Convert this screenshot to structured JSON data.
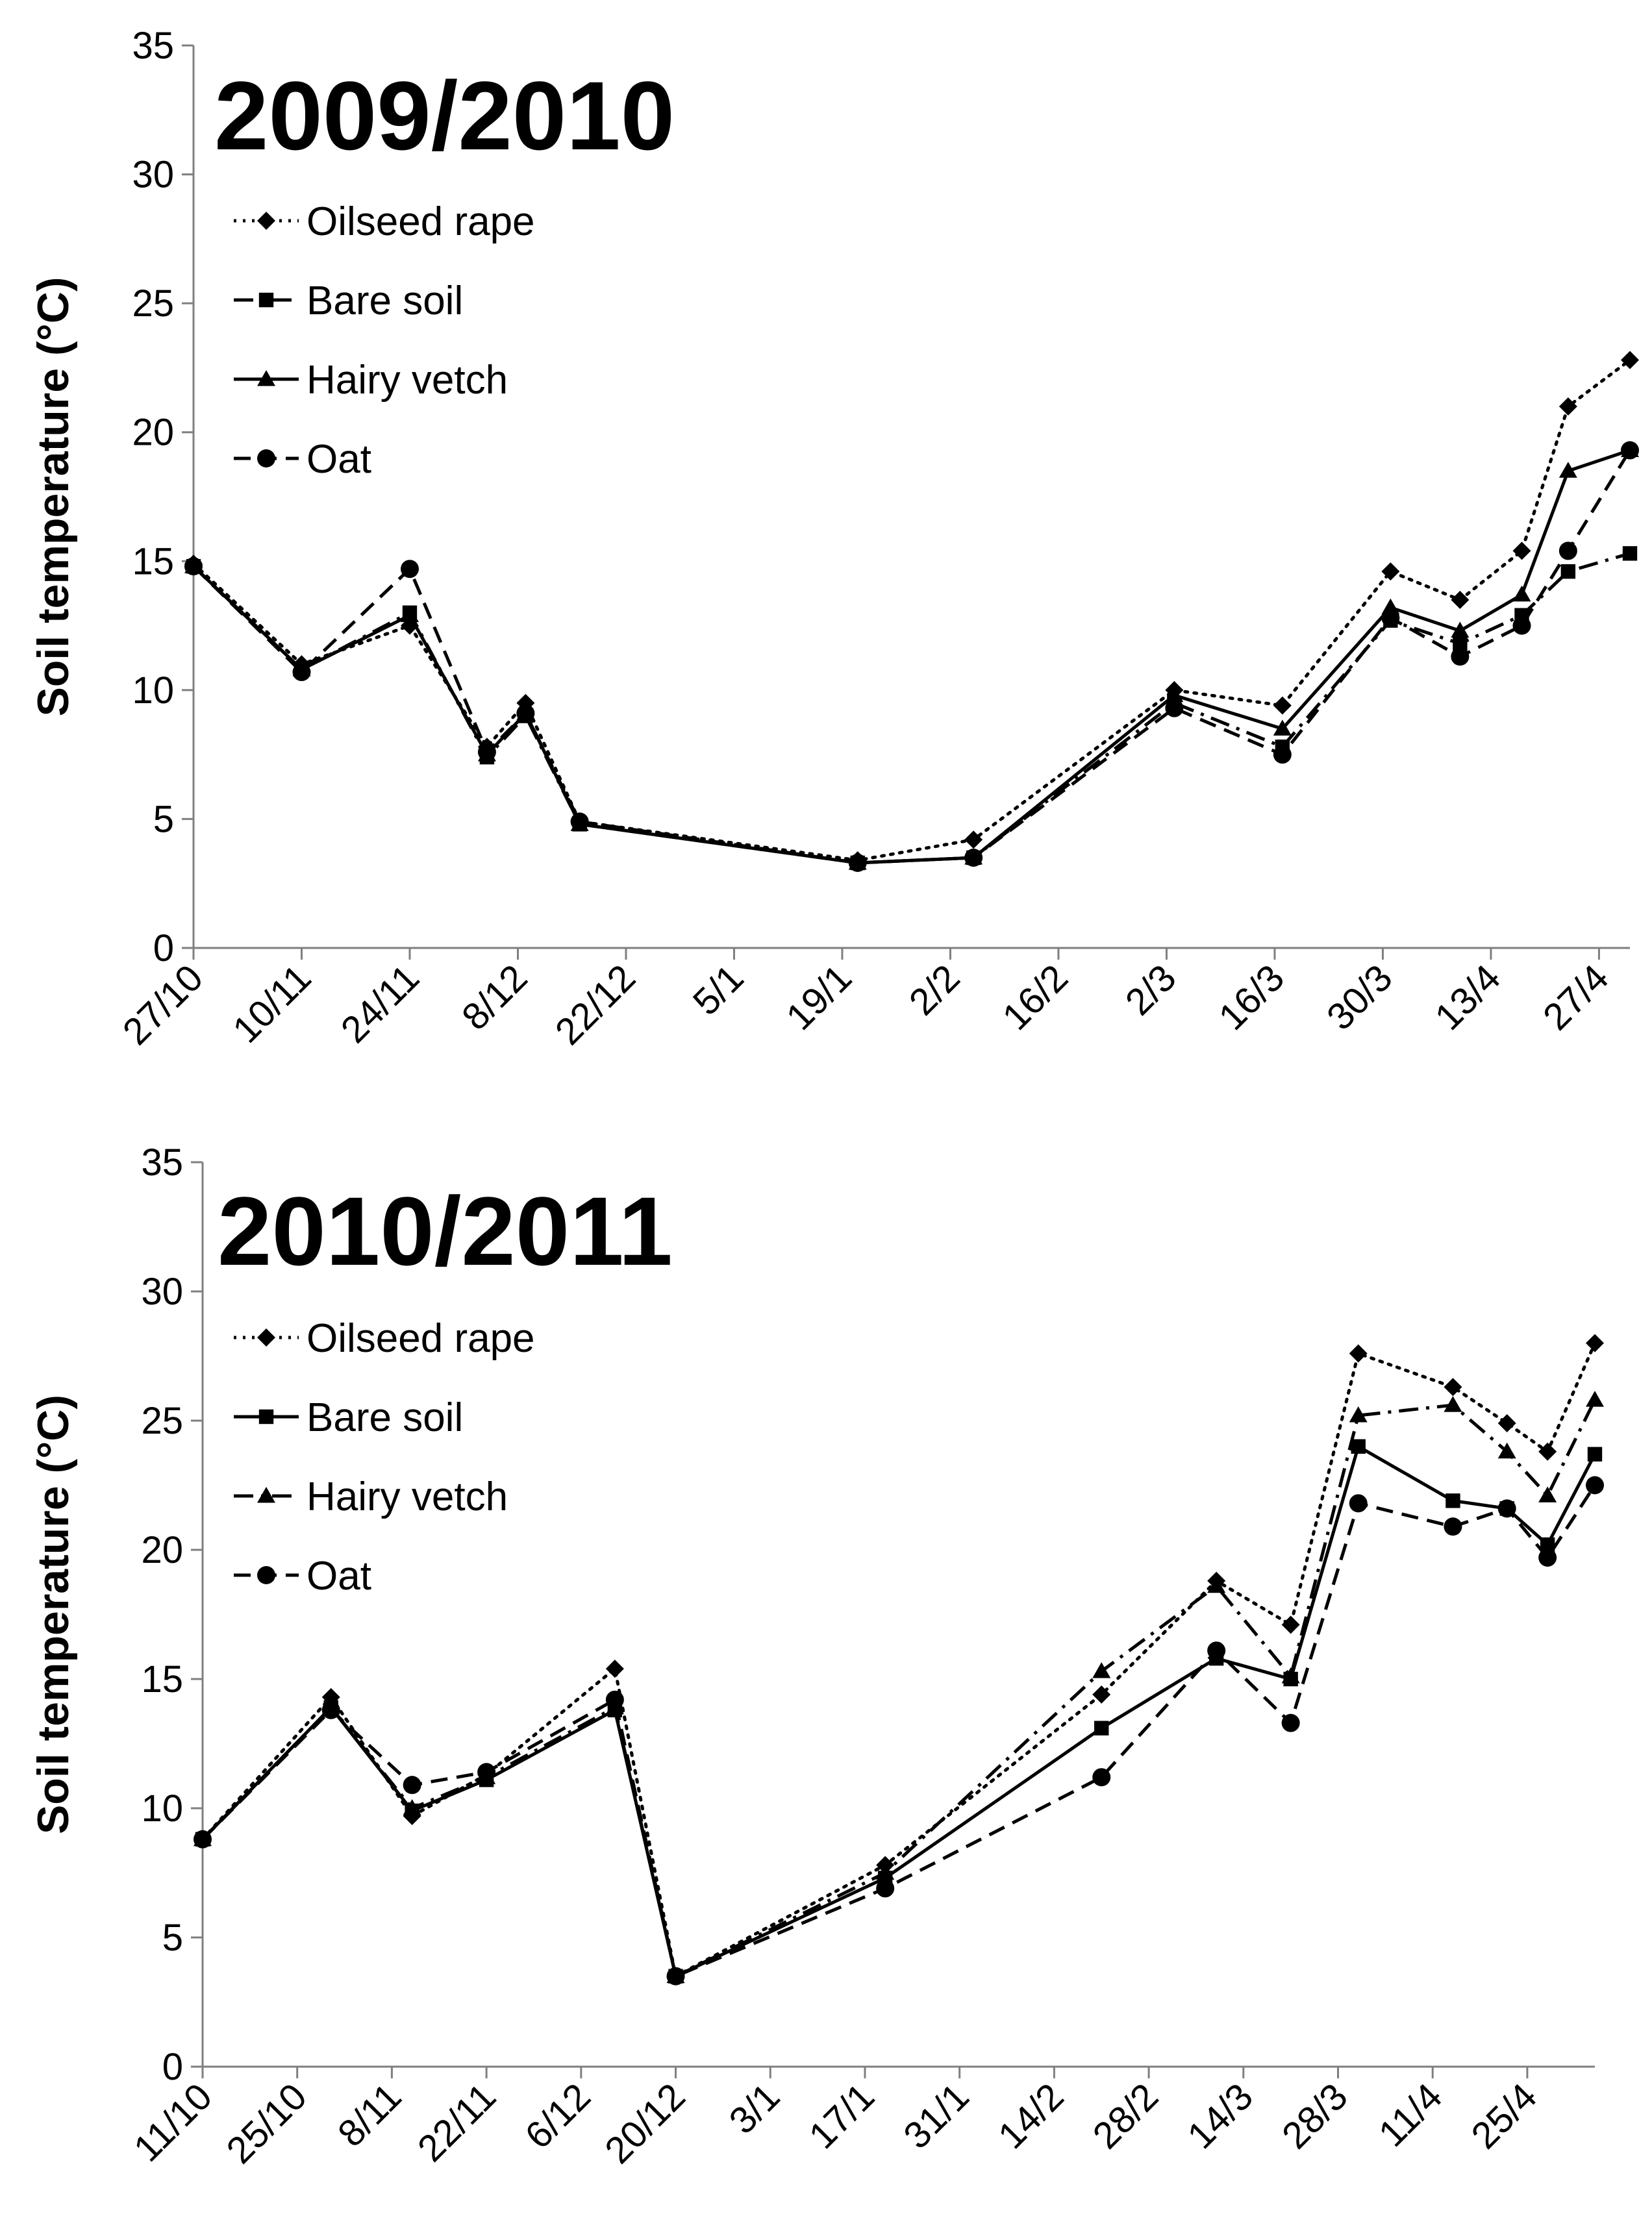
{
  "chart_data": [
    {
      "type": "line",
      "title": "2009/2010",
      "ylabel": "Soil temperature (°C)",
      "xlabel": "",
      "ylim": [
        0,
        35
      ],
      "yticks": [
        0,
        5,
        10,
        15,
        20,
        25,
        30,
        35
      ],
      "x_tick_labels": [
        "27/10",
        "10/11",
        "24/11",
        "8/12",
        "22/12",
        "5/1",
        "19/1",
        "2/2",
        "16/2",
        "2/3",
        "16/3",
        "30/3",
        "13/4",
        "27/4"
      ],
      "x_day_range": [
        0,
        186
      ],
      "x_tick_days": [
        0,
        14,
        28,
        42,
        56,
        70,
        84,
        98,
        112,
        126,
        140,
        154,
        168,
        182
      ],
      "x_days": [
        0,
        14,
        28,
        38,
        43,
        50,
        86,
        101,
        127,
        141,
        155,
        164,
        172,
        178,
        186
      ],
      "series": [
        {
          "name": "Oilseed rape",
          "style": "dotted",
          "marker": "diamond",
          "values": [
            14.9,
            11.0,
            12.5,
            7.8,
            9.5,
            4.9,
            3.4,
            4.2,
            10.0,
            9.4,
            14.6,
            13.5,
            15.4,
            21.0,
            22.8
          ]
        },
        {
          "name": "Bare soil",
          "style": "dashdot",
          "marker": "square",
          "values": [
            14.8,
            10.8,
            13.0,
            7.4,
            9.0,
            4.8,
            3.3,
            3.5,
            9.5,
            7.8,
            12.7,
            11.8,
            12.9,
            14.6,
            15.3
          ]
        },
        {
          "name": "Hairy vetch",
          "style": "solid",
          "marker": "triangle",
          "values": [
            14.8,
            10.8,
            12.9,
            7.5,
            9.1,
            4.8,
            3.3,
            3.5,
            9.8,
            8.5,
            13.2,
            12.3,
            13.7,
            18.5,
            19.3
          ]
        },
        {
          "name": "Oat",
          "style": "dashed",
          "marker": "circle",
          "values": [
            14.8,
            10.7,
            14.7,
            7.6,
            9.1,
            4.9,
            3.3,
            3.5,
            9.3,
            7.5,
            12.8,
            11.3,
            12.5,
            15.4,
            19.3
          ]
        }
      ]
    },
    {
      "type": "line",
      "title": "2010/2011",
      "ylabel": "Soil temperature (°C)",
      "xlabel": "",
      "ylim": [
        0,
        35
      ],
      "yticks": [
        0,
        5,
        10,
        15,
        20,
        25,
        30,
        35
      ],
      "x_tick_labels": [
        "11/10",
        "25/10",
        "8/11",
        "22/11",
        "6/12",
        "20/12",
        "3/1",
        "17/1",
        "31/1",
        "14/2",
        "28/2",
        "14/3",
        "28/3",
        "11/4",
        "25/4"
      ],
      "x_day_range": [
        0,
        206
      ],
      "x_tick_days": [
        0,
        14,
        28,
        42,
        56,
        70,
        84,
        98,
        112,
        126,
        140,
        154,
        168,
        182,
        196
      ],
      "x_days": [
        0,
        19,
        31,
        42,
        61,
        70,
        101,
        133,
        150,
        161,
        171,
        185,
        193,
        199,
        206
      ],
      "series": [
        {
          "name": "Oilseed rape",
          "style": "dotted",
          "marker": "diamond",
          "values": [
            8.8,
            14.3,
            9.7,
            11.3,
            15.4,
            3.5,
            7.8,
            14.4,
            18.8,
            17.1,
            27.6,
            26.3,
            24.9,
            23.8,
            28.0
          ]
        },
        {
          "name": "Bare soil",
          "style": "solid",
          "marker": "square",
          "values": [
            8.8,
            13.9,
            9.9,
            11.1,
            13.8,
            3.5,
            7.3,
            13.1,
            15.8,
            15.0,
            24.0,
            21.9,
            21.6,
            20.2,
            23.7
          ]
        },
        {
          "name": "Hairy vetch",
          "style": "dashdot",
          "marker": "triangle",
          "values": [
            8.8,
            13.9,
            10.0,
            11.2,
            13.9,
            3.5,
            7.5,
            15.3,
            18.6,
            15.1,
            25.2,
            25.6,
            23.8,
            22.1,
            25.8
          ]
        },
        {
          "name": "Oat",
          "style": "dashed",
          "marker": "circle",
          "values": [
            8.8,
            13.8,
            10.9,
            11.4,
            14.2,
            3.5,
            6.9,
            11.2,
            16.1,
            13.3,
            21.8,
            20.9,
            21.6,
            19.7,
            22.5
          ]
        }
      ]
    }
  ]
}
